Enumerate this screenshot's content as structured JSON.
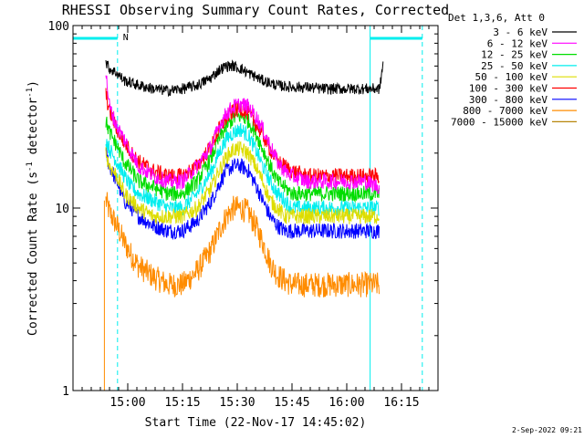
{
  "chart_data": {
    "type": "line",
    "title": "RHESSI Observing Summary Count Rates, Corrected",
    "xlabel": "Start Time (22-Nov-17 14:45:02)",
    "ylabel": "Corrected Count Rate (s",
    "ylabel_sup1": "-1",
    "ylabel_mid": " detector",
    "ylabel_sup2": "-1",
    "ylabel_end": ")",
    "y_scale": "log",
    "ylim": [
      1,
      100
    ],
    "xlim_minutes": [
      0,
      100
    ],
    "y_ticks": [
      {
        "value": 1,
        "label": "1"
      },
      {
        "value": 10,
        "label": "10"
      },
      {
        "value": 100,
        "label": "100"
      }
    ],
    "x_ticks": [
      {
        "minute": 15,
        "label": "15:00"
      },
      {
        "minute": 30,
        "label": "15:15"
      },
      {
        "minute": 45,
        "label": "15:30"
      },
      {
        "minute": 60,
        "label": "15:45"
      },
      {
        "minute": 75,
        "label": "16:00"
      },
      {
        "minute": 90,
        "label": "16:15"
      }
    ],
    "legend_header": "Det 1,3,6, Att 0",
    "legend_position": "top-right outside",
    "series": [
      {
        "name": "3 - 6 keV",
        "color": "#000000",
        "x": [
          9,
          10,
          12,
          14,
          18,
          22,
          26,
          30,
          34,
          38,
          40,
          42,
          44,
          46,
          48,
          52,
          56,
          60,
          64,
          68,
          72,
          76,
          80,
          84,
          85
        ],
        "y": [
          63,
          58,
          55,
          50,
          47,
          45,
          44,
          45,
          47,
          52,
          57,
          60,
          60,
          58,
          55,
          50,
          47,
          46,
          46,
          45,
          45,
          45,
          45,
          45,
          63
        ]
      },
      {
        "name": "6 - 12 keV",
        "color": "#ff00ff",
        "x": [
          9,
          10,
          12,
          14,
          16,
          18,
          22,
          26,
          30,
          34,
          38,
          40,
          42,
          44,
          46,
          48,
          50,
          52,
          54,
          56,
          58,
          60,
          64,
          68,
          72,
          76,
          80,
          84
        ],
        "y": [
          55,
          36,
          28,
          24,
          20,
          17,
          15,
          14,
          14,
          17,
          22,
          28,
          33,
          36,
          37,
          36,
          32,
          27,
          22,
          18,
          16,
          15,
          14,
          14,
          14,
          14,
          14,
          13
        ]
      },
      {
        "name": "12 - 25 keV",
        "color": "#00dd00",
        "x": [
          9,
          10,
          12,
          14,
          16,
          18,
          22,
          26,
          30,
          34,
          38,
          40,
          42,
          44,
          46,
          48,
          50,
          52,
          54,
          56,
          58,
          60,
          64,
          68,
          72,
          76,
          80,
          84
        ],
        "y": [
          30,
          26,
          22,
          18,
          16,
          14,
          13,
          12,
          12,
          14,
          19,
          24,
          28,
          31,
          32,
          30,
          26,
          21,
          17,
          14,
          13,
          12,
          12,
          12,
          12,
          12,
          12,
          12
        ]
      },
      {
        "name": "25 - 50 keV",
        "color": "#00eeee",
        "x": [
          9,
          10,
          12,
          14,
          16,
          18,
          22,
          26,
          30,
          34,
          38,
          40,
          42,
          44,
          46,
          48,
          50,
          52,
          54,
          56,
          58,
          60,
          64,
          68,
          72,
          76,
          80,
          84
        ],
        "y": [
          24,
          21,
          18,
          15,
          13,
          12,
          11,
          10,
          10,
          12,
          16,
          20,
          24,
          26,
          27,
          25,
          21,
          17,
          14,
          12,
          11,
          10,
          10,
          10,
          10,
          10,
          10,
          10
        ]
      },
      {
        "name": "50 - 100 keV",
        "color": "#dddd00",
        "x": [
          9,
          10,
          12,
          14,
          16,
          18,
          22,
          26,
          30,
          34,
          38,
          40,
          42,
          44,
          46,
          48,
          50,
          52,
          54,
          56,
          58,
          60,
          64,
          68,
          72,
          76,
          80,
          84
        ],
        "y": [
          20,
          17,
          15,
          12,
          11,
          10,
          9,
          9,
          9,
          10,
          13,
          16,
          19,
          21,
          21,
          20,
          17,
          14,
          11,
          10,
          9,
          9,
          9,
          9,
          9,
          9,
          9,
          9
        ]
      },
      {
        "name": "100 - 300 keV",
        "color": "#ff0000",
        "x": [
          9,
          10,
          12,
          14,
          16,
          18,
          22,
          26,
          30,
          34,
          38,
          40,
          42,
          44,
          46,
          48,
          50,
          52,
          54,
          56,
          58,
          60,
          64,
          68,
          72,
          76,
          80,
          84
        ],
        "y": [
          42,
          34,
          27,
          23,
          20,
          18,
          16,
          15,
          15,
          17,
          22,
          27,
          31,
          34,
          35,
          33,
          29,
          25,
          21,
          18,
          17,
          16,
          15,
          15,
          15,
          15,
          15,
          15
        ]
      },
      {
        "name": "300 - 800 keV",
        "color": "#0000ff",
        "x": [
          9,
          10,
          12,
          14,
          16,
          18,
          22,
          26,
          30,
          34,
          38,
          40,
          42,
          44,
          46,
          48,
          50,
          52,
          54,
          56,
          58,
          60,
          64,
          68,
          72,
          76,
          80,
          84
        ],
        "y": [
          20,
          17,
          14,
          11,
          10,
          9,
          8,
          7.5,
          7.5,
          8.5,
          11,
          13.5,
          16,
          17,
          17,
          16,
          13.5,
          11,
          9,
          8,
          7.5,
          7.5,
          7.5,
          7.5,
          7.5,
          7.5,
          7.5,
          7.5
        ]
      },
      {
        "name": "800 - 7000 keV",
        "color": "#ff8c00",
        "x": [
          9,
          10,
          12,
          14,
          16,
          18,
          22,
          26,
          30,
          34,
          38,
          40,
          42,
          44,
          46,
          48,
          50,
          52,
          54,
          56,
          58,
          60,
          64,
          68,
          72,
          76,
          80,
          84
        ],
        "y": [
          11,
          9.5,
          8,
          6.5,
          5.5,
          4.8,
          4.2,
          3.8,
          3.8,
          4.5,
          6,
          7.5,
          9,
          10,
          10,
          9.5,
          8,
          6.5,
          5,
          4.3,
          4,
          3.8,
          3.8,
          3.8,
          3.8,
          3.8,
          3.8,
          3.8
        ]
      },
      {
        "name": "7000 - 15000 keV",
        "color": "#b8860b",
        "x": [],
        "y": []
      }
    ],
    "markers": {
      "solid_cyan_lines_minutes": [
        0,
        81.4
      ],
      "dashed_cyan_lines_minutes": [
        12.2,
        95.7
      ],
      "top_bar_segments_minutes": [
        [
          0,
          12.2
        ],
        [
          81.4,
          95.7
        ]
      ],
      "label": "N"
    }
  },
  "timestamp": "2-Sep-2022 09:21"
}
